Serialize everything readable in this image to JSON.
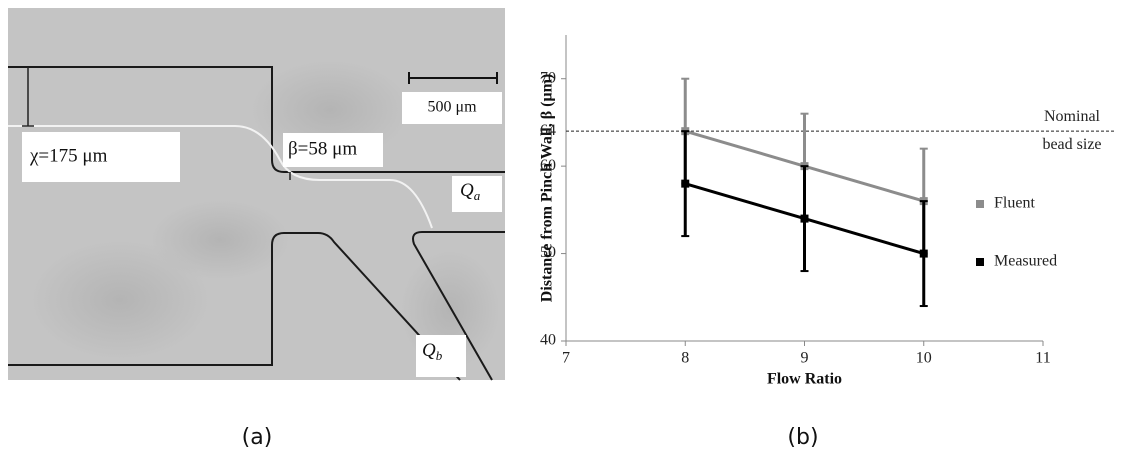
{
  "panel_a": {
    "chi_label": "χ=175 μm",
    "beta_label": "β=58 μm",
    "scale_label": "500 μm",
    "qa": {
      "main": "Q",
      "sub": "a"
    },
    "qb": {
      "main": "Q",
      "sub": "b"
    }
  },
  "panel_labels": [
    "(a)",
    "(b)"
  ],
  "chart_data": {
    "type": "line",
    "x_label": "Flow Ratio",
    "y_label": "Distance from Pinch Wall, β  (μm)",
    "x": [
      8,
      9,
      10
    ],
    "series": [
      {
        "name": "Fluent",
        "color": "#8c8c8c",
        "values": [
          64,
          60,
          56
        ],
        "errors": [
          6,
          6,
          6
        ]
      },
      {
        "name": "Measured",
        "color": "#000000",
        "values": [
          58,
          54,
          50
        ],
        "errors": [
          6,
          6,
          6
        ]
      }
    ],
    "xlim": [
      7,
      11
    ],
    "xticks": [
      7,
      8,
      9,
      10,
      11
    ],
    "ylim": [
      40,
      75
    ],
    "yticks": [
      40,
      50,
      60,
      70
    ],
    "reference_line": {
      "value": 64,
      "label": [
        "Nominal",
        "bead size"
      ]
    },
    "legend": "right"
  }
}
